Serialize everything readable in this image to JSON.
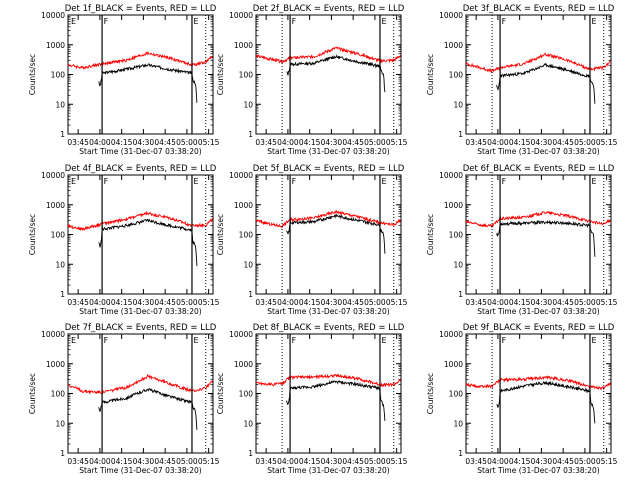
{
  "chart_data": {
    "type": "line",
    "layout": {
      "rows": 3,
      "cols": 3
    },
    "colors": {
      "events": "#000000",
      "lld": "#ff0000",
      "frame": "#000000"
    },
    "x_ticks": [
      "03:45",
      "04:00",
      "04:15",
      "04:30",
      "04:45",
      "05:00",
      "05:15"
    ],
    "x_range_min": [
      0,
      100
    ],
    "x_tick_min": [
      7,
      22,
      37,
      52,
      67,
      82,
      97
    ],
    "xlabel": "Start Time (31-Dec-07 03:38:20)",
    "ylabel": "Counts/sec",
    "yscale": "log",
    "ylim": [
      1,
      10000
    ],
    "y_ticks": [
      "1",
      "10",
      "100",
      "1000",
      "10000"
    ],
    "panels": [
      {
        "title": "Det 1f_BLACK = Events, RED = LLD",
        "markers": [
          {
            "label": "E",
            "x": 1
          },
          {
            "label": "F",
            "x": 23.5
          },
          {
            "label": "E",
            "x": 85.5
          }
        ],
        "solid_lines": [
          23.5,
          85.5
        ],
        "dotted_lines": [
          95
        ],
        "series": [
          {
            "color": "#000000",
            "points": [
              [
                21,
                60
              ],
              [
                22,
                40
              ],
              [
                23,
                65
              ],
              [
                23.5,
                110
              ],
              [
                40,
                150
              ],
              [
                55,
                210
              ],
              [
                70,
                150
              ],
              [
                85.5,
                110
              ],
              [
                86,
                65
              ],
              [
                88,
                50
              ],
              [
                89,
                9
              ]
            ]
          },
          {
            "color": "#ff0000",
            "points": [
              [
                0,
                210
              ],
              [
                10,
                170
              ],
              [
                23.5,
                230
              ],
              [
                40,
                300
              ],
              [
                55,
                520
              ],
              [
                70,
                360
              ],
              [
                85.5,
                210
              ],
              [
                95,
                260
              ],
              [
                100,
                410
              ]
            ]
          }
        ]
      },
      {
        "title": "Det 2f_BLACK = Events, RED = LLD",
        "markers": [
          {
            "label": "F",
            "x": 23.5
          },
          {
            "label": "E",
            "x": 85.5
          }
        ],
        "solid_lines": [
          23.5,
          85.5
        ],
        "dotted_lines": [
          18,
          95
        ],
        "series": [
          {
            "color": "#000000",
            "points": [
              [
                21,
                120
              ],
              [
                22,
                100
              ],
              [
                23,
                150
              ],
              [
                23.5,
                220
              ],
              [
                40,
                240
              ],
              [
                55,
                400
              ],
              [
                70,
                270
              ],
              [
                85.5,
                190
              ],
              [
                86,
                140
              ],
              [
                88,
                100
              ],
              [
                89,
                20
              ]
            ]
          },
          {
            "color": "#ff0000",
            "points": [
              [
                0,
                420
              ],
              [
                10,
                330
              ],
              [
                18,
                270
              ],
              [
                23.5,
                360
              ],
              [
                40,
                400
              ],
              [
                55,
                780
              ],
              [
                70,
                500
              ],
              [
                85.5,
                290
              ],
              [
                95,
                300
              ],
              [
                100,
                450
              ]
            ]
          }
        ]
      },
      {
        "title": "Det 3f_BLACK = Events, RED = LLD",
        "markers": [
          {
            "label": "F",
            "x": 23.5
          },
          {
            "label": "E",
            "x": 85.5
          }
        ],
        "solid_lines": [
          23.5,
          85.5
        ],
        "dotted_lines": [
          18,
          95
        ],
        "series": [
          {
            "color": "#000000",
            "points": [
              [
                21,
                40
              ],
              [
                22,
                30
              ],
              [
                23,
                50
              ],
              [
                23.5,
                90
              ],
              [
                40,
                110
              ],
              [
                55,
                210
              ],
              [
                70,
                140
              ],
              [
                85.5,
                85
              ],
              [
                86,
                60
              ],
              [
                88,
                45
              ],
              [
                89,
                10
              ]
            ]
          },
          {
            "color": "#ff0000",
            "points": [
              [
                0,
                230
              ],
              [
                10,
                170
              ],
              [
                18,
                130
              ],
              [
                23.5,
                170
              ],
              [
                40,
                230
              ],
              [
                55,
                480
              ],
              [
                70,
                300
              ],
              [
                85.5,
                150
              ],
              [
                95,
                170
              ],
              [
                100,
                300
              ]
            ]
          }
        ]
      },
      {
        "title": "Det 4f_BLACK = Events, RED = LLD",
        "markers": [
          {
            "label": "E",
            "x": 1
          },
          {
            "label": "F",
            "x": 23.5
          },
          {
            "label": "E",
            "x": 85.5
          }
        ],
        "solid_lines": [
          23.5,
          85.5
        ],
        "dotted_lines": [
          95
        ],
        "series": [
          {
            "color": "#000000",
            "points": [
              [
                21,
                55
              ],
              [
                22,
                40
              ],
              [
                23,
                60
              ],
              [
                23.5,
                150
              ],
              [
                40,
                200
              ],
              [
                55,
                300
              ],
              [
                70,
                200
              ],
              [
                85.5,
                140
              ],
              [
                86,
                60
              ],
              [
                88,
                40
              ],
              [
                89,
                8
              ]
            ]
          },
          {
            "color": "#ff0000",
            "points": [
              [
                0,
                200
              ],
              [
                10,
                150
              ],
              [
                23.5,
                230
              ],
              [
                40,
                330
              ],
              [
                55,
                520
              ],
              [
                70,
                360
              ],
              [
                85.5,
                200
              ],
              [
                95,
                210
              ],
              [
                100,
                330
              ]
            ]
          }
        ]
      },
      {
        "title": "Det 5f_BLACK = Events, RED = LLD",
        "markers": [
          {
            "label": "F",
            "x": 23.5
          },
          {
            "label": "E",
            "x": 85.5
          }
        ],
        "solid_lines": [
          23.5,
          85.5
        ],
        "dotted_lines": [
          18,
          95
        ],
        "series": [
          {
            "color": "#000000",
            "points": [
              [
                21,
                130
              ],
              [
                22,
                100
              ],
              [
                23,
                150
              ],
              [
                23.5,
                250
              ],
              [
                40,
                270
              ],
              [
                55,
                430
              ],
              [
                70,
                300
              ],
              [
                85.5,
                210
              ],
              [
                86,
                140
              ],
              [
                88,
                110
              ],
              [
                89,
                20
              ]
            ]
          },
          {
            "color": "#ff0000",
            "points": [
              [
                0,
                300
              ],
              [
                10,
                220
              ],
              [
                18,
                190
              ],
              [
                23.5,
                320
              ],
              [
                40,
                360
              ],
              [
                55,
                580
              ],
              [
                70,
                400
              ],
              [
                85.5,
                250
              ],
              [
                95,
                210
              ],
              [
                100,
                320
              ]
            ]
          }
        ]
      },
      {
        "title": "Det 6f_BLACK = Events, RED = LLD",
        "markers": [
          {
            "label": "F",
            "x": 23.5
          },
          {
            "label": "E",
            "x": 85.5
          }
        ],
        "solid_lines": [
          23.5,
          85.5
        ],
        "dotted_lines": [
          18,
          95
        ],
        "series": [
          {
            "color": "#000000",
            "points": [
              [
                21,
                110
              ],
              [
                22,
                90
              ],
              [
                23,
                130
              ],
              [
                23.5,
                230
              ],
              [
                40,
                240
              ],
              [
                55,
                260
              ],
              [
                70,
                240
              ],
              [
                85.5,
                200
              ],
              [
                86,
                130
              ],
              [
                88,
                100
              ],
              [
                89,
                15
              ]
            ]
          },
          {
            "color": "#ff0000",
            "points": [
              [
                0,
                270
              ],
              [
                10,
                210
              ],
              [
                18,
                190
              ],
              [
                23.5,
                340
              ],
              [
                40,
                380
              ],
              [
                55,
                560
              ],
              [
                70,
                420
              ],
              [
                85.5,
                280
              ],
              [
                95,
                220
              ],
              [
                100,
                320
              ]
            ]
          }
        ]
      },
      {
        "title": "Det 7f_BLACK = Events, RED = LLD",
        "markers": [
          {
            "label": "E",
            "x": 1
          },
          {
            "label": "F",
            "x": 23.5
          },
          {
            "label": "E",
            "x": 85.5
          }
        ],
        "solid_lines": [
          23.5,
          85.5
        ],
        "dotted_lines": [
          95
        ],
        "series": [
          {
            "color": "#000000",
            "points": [
              [
                21,
                35
              ],
              [
                22,
                25
              ],
              [
                23,
                40
              ],
              [
                23.5,
                50
              ],
              [
                40,
                70
              ],
              [
                55,
                140
              ],
              [
                70,
                80
              ],
              [
                85.5,
                50
              ],
              [
                86,
                35
              ],
              [
                88,
                25
              ],
              [
                89,
                5
              ]
            ]
          },
          {
            "color": "#ff0000",
            "points": [
              [
                0,
                200
              ],
              [
                10,
                120
              ],
              [
                23.5,
                110
              ],
              [
                40,
                160
              ],
              [
                55,
                380
              ],
              [
                70,
                220
              ],
              [
                85.5,
                120
              ],
              [
                95,
                150
              ],
              [
                100,
                270
              ]
            ]
          }
        ]
      },
      {
        "title": "Det 8f_BLACK = Events, RED = LLD",
        "markers": [
          {
            "label": "F",
            "x": 23.5
          },
          {
            "label": "E",
            "x": 85.5
          }
        ],
        "solid_lines": [
          23.5,
          85.5
        ],
        "dotted_lines": [
          18,
          95
        ],
        "series": [
          {
            "color": "#000000",
            "points": [
              [
                21,
                55
              ],
              [
                22,
                40
              ],
              [
                23,
                60
              ],
              [
                23.5,
                150
              ],
              [
                40,
                170
              ],
              [
                55,
                250
              ],
              [
                70,
                200
              ],
              [
                85.5,
                150
              ],
              [
                86,
                60
              ],
              [
                88,
                40
              ],
              [
                89,
                10
              ]
            ]
          },
          {
            "color": "#ff0000",
            "points": [
              [
                0,
                230
              ],
              [
                10,
                200
              ],
              [
                18,
                220
              ],
              [
                23.5,
                350
              ],
              [
                40,
                360
              ],
              [
                55,
                400
              ],
              [
                70,
                320
              ],
              [
                85.5,
                200
              ],
              [
                95,
                200
              ],
              [
                100,
                280
              ]
            ]
          }
        ]
      },
      {
        "title": "Det 9f_BLACK = Events, RED = LLD",
        "markers": [
          {
            "label": "F",
            "x": 23.5
          },
          {
            "label": "E",
            "x": 85.5
          }
        ],
        "solid_lines": [
          23.5,
          85.5
        ],
        "dotted_lines": [
          18,
          95
        ],
        "series": [
          {
            "color": "#000000",
            "points": [
              [
                21,
                45
              ],
              [
                22,
                35
              ],
              [
                23,
                50
              ],
              [
                23.5,
                120
              ],
              [
                40,
                180
              ],
              [
                55,
                230
              ],
              [
                70,
                170
              ],
              [
                85.5,
                120
              ],
              [
                86,
                50
              ],
              [
                88,
                35
              ],
              [
                89,
                8
              ]
            ]
          },
          {
            "color": "#ff0000",
            "points": [
              [
                0,
                200
              ],
              [
                10,
                170
              ],
              [
                18,
                180
              ],
              [
                23.5,
                290
              ],
              [
                40,
                300
              ],
              [
                55,
                350
              ],
              [
                70,
                280
              ],
              [
                85.5,
                170
              ],
              [
                95,
                150
              ],
              [
                100,
                220
              ]
            ]
          }
        ]
      }
    ]
  }
}
